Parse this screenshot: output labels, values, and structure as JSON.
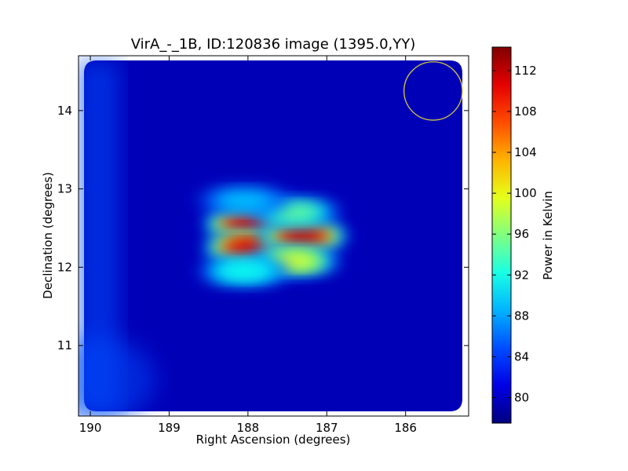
{
  "chart_data": {
    "type": "heatmap",
    "title": "VirA_-_1B, ID:120836 image (1395.0,YY)",
    "xlabel": "Right Ascension (degrees)",
    "ylabel": "Declination (degrees)",
    "xlim": [
      190.15,
      185.2
    ],
    "ylim": [
      10.1,
      14.7
    ],
    "xticks": [
      190,
      189,
      188,
      187,
      186
    ],
    "yticks": [
      11,
      12,
      13,
      14
    ],
    "colorbar": {
      "label": "Power in Kelvin",
      "range": [
        77.5,
        114.3
      ],
      "ticks": [
        80,
        84,
        88,
        92,
        96,
        100,
        104,
        108,
        112
      ],
      "colormap": "jet"
    },
    "background_level": 79.5,
    "sources": [
      {
        "ra": 188.0,
        "dec": 12.55,
        "peak": 112
      },
      {
        "ra": 188.0,
        "dec": 12.25,
        "peak": 112
      },
      {
        "ra": 187.3,
        "dec": 12.4,
        "peak": 113
      },
      {
        "ra": 187.4,
        "dec": 12.7,
        "peak": 96
      },
      {
        "ra": 187.4,
        "dec": 12.08,
        "peak": 100
      },
      {
        "ra": 188.05,
        "dec": 12.85,
        "peak": 90
      },
      {
        "ra": 188.05,
        "dec": 11.95,
        "peak": 92
      }
    ],
    "beam_circle": {
      "ra": 185.65,
      "dec": 14.25,
      "radius_deg": 0.37,
      "color": "#d8c840"
    },
    "edge_gradient": {
      "edge": "left",
      "level": 85
    }
  }
}
